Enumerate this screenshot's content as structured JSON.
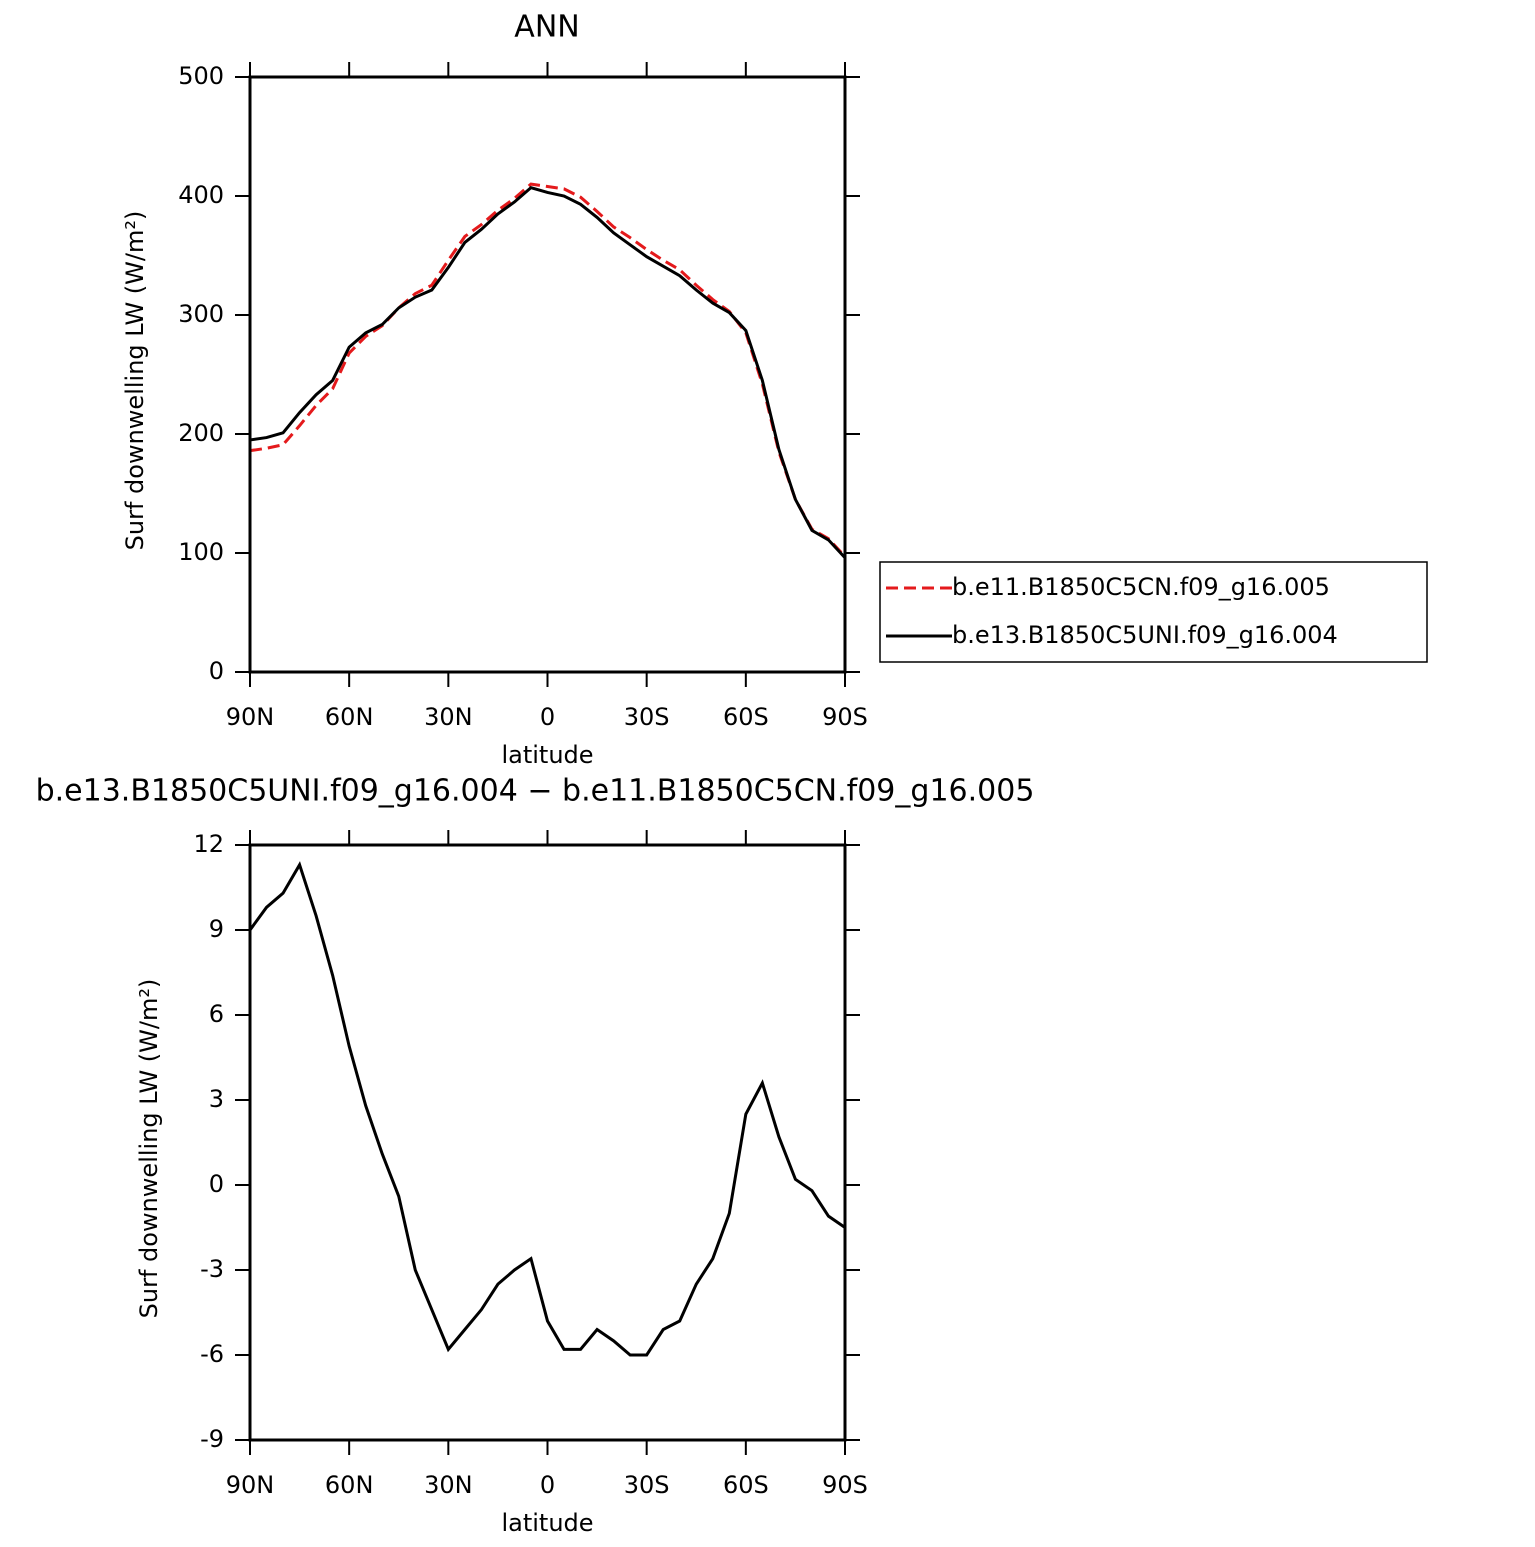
{
  "chart_data": [
    {
      "type": "line",
      "title": "ANN",
      "xlabel": "latitude",
      "ylabel": "Surf downwelling LW (W/m²)",
      "x": [
        90,
        85,
        80,
        75,
        70,
        65,
        60,
        55,
        50,
        45,
        40,
        35,
        30,
        25,
        20,
        15,
        10,
        5,
        0,
        -5,
        -10,
        -15,
        -20,
        -25,
        -30,
        -35,
        -40,
        -45,
        -50,
        -55,
        -60,
        -65,
        -70,
        -75,
        -80,
        -85,
        -90
      ],
      "series": [
        {
          "name": "b.e11.B1850C5CN.f09_g16.005",
          "color": "#e41a1c",
          "style": "dashed",
          "values": [
            186,
            188,
            191,
            207,
            224,
            238,
            268,
            282,
            291,
            306,
            318,
            325,
            346,
            366,
            376,
            388,
            398,
            410,
            408,
            406,
            399,
            387,
            374,
            365,
            355,
            346,
            338,
            325,
            313,
            303,
            285,
            242,
            185,
            145,
            120,
            112,
            97
          ]
        },
        {
          "name": "b.e13.B1850C5UNI.f09_g16.004",
          "color": "#000000",
          "style": "solid",
          "values": [
            195,
            197,
            201,
            218,
            233,
            245,
            273,
            285,
            292,
            306,
            315,
            321,
            340,
            361,
            372,
            385,
            395,
            407,
            403,
            400,
            393,
            382,
            369,
            359,
            349,
            341,
            333,
            321,
            310,
            302,
            287,
            245,
            187,
            145,
            119,
            111,
            96
          ]
        }
      ],
      "xlim": [
        90,
        -90
      ],
      "xticks": [
        {
          "value": 90,
          "label": "90N"
        },
        {
          "value": 60,
          "label": "60N"
        },
        {
          "value": 30,
          "label": "30N"
        },
        0,
        {
          "value": -30,
          "label": "30S"
        },
        {
          "value": -60,
          "label": "60S"
        },
        {
          "value": -90,
          "label": "90S"
        }
      ],
      "ylim": [
        0,
        500
      ],
      "yticks": [
        0,
        100,
        200,
        300,
        400,
        500
      ],
      "legend": "right"
    },
    {
      "type": "line",
      "title": "b.e13.B1850C5UNI.f09_g16.004 − b.e11.B1850C5CN.f09_g16.005",
      "xlabel": "latitude",
      "ylabel": "Surf downwelling LW (W/m²)",
      "x": [
        90,
        85,
        80,
        75,
        70,
        65,
        60,
        55,
        50,
        45,
        40,
        35,
        30,
        25,
        20,
        15,
        10,
        5,
        0,
        -5,
        -10,
        -15,
        -20,
        -25,
        -30,
        -35,
        -40,
        -45,
        -50,
        -55,
        -60,
        -65,
        -70,
        -75,
        -80,
        -85,
        -90
      ],
      "color": "#000000",
      "values": [
        9.0,
        9.8,
        10.3,
        11.3,
        9.5,
        7.4,
        4.9,
        2.8,
        1.1,
        -0.4,
        -3.0,
        -4.4,
        -5.8,
        -5.1,
        -4.4,
        -3.5,
        -3.0,
        -2.6,
        -4.8,
        -5.8,
        -5.8,
        -5.1,
        -5.5,
        -6.0,
        -6.0,
        -5.1,
        -4.8,
        -3.5,
        -2.6,
        -1.0,
        2.5,
        3.6,
        1.7,
        0.2,
        -0.2,
        -1.1,
        -1.5
      ],
      "xlim": [
        90,
        -90
      ],
      "xticks": [
        {
          "value": 90,
          "label": "90N"
        },
        {
          "value": 60,
          "label": "60N"
        },
        {
          "value": 30,
          "label": "30N"
        },
        0,
        {
          "value": -30,
          "label": "30S"
        },
        {
          "value": -60,
          "label": "60S"
        },
        {
          "value": -90,
          "label": "90S"
        }
      ],
      "ylim": [
        -9,
        12
      ],
      "yticks": [
        -9,
        -6,
        -3,
        0,
        3,
        6,
        9,
        12
      ]
    }
  ]
}
